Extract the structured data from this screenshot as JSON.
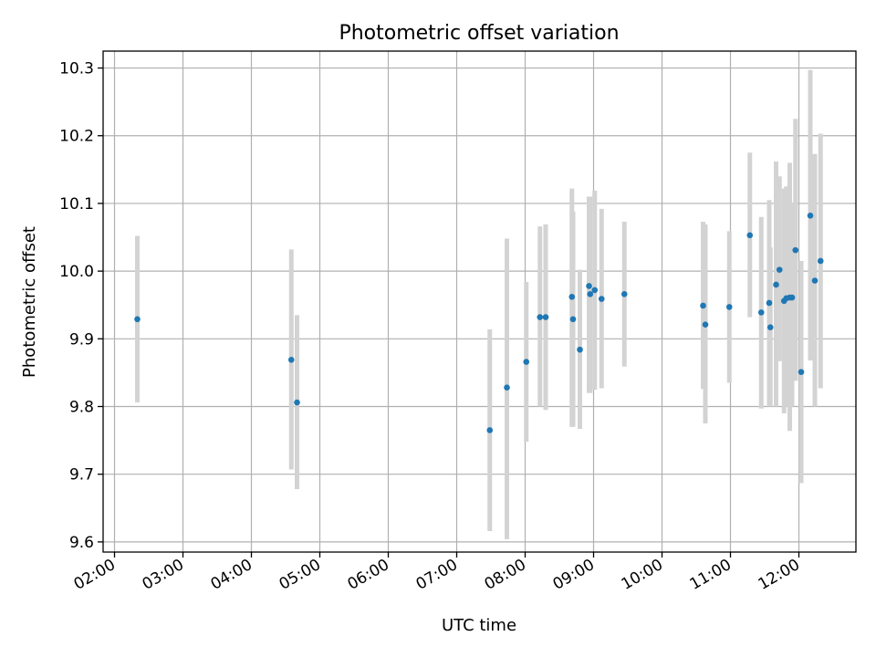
{
  "chart_data": {
    "type": "scatter",
    "title": "Photometric offset variation",
    "xlabel": "UTC time",
    "ylabel": "Photometric offset",
    "x_unit": "hours (UTC)",
    "xlim": [
      "01:50",
      "12:50"
    ],
    "ylim": [
      9.585,
      10.325
    ],
    "grid": true,
    "x_ticks": [
      {
        "t": 2,
        "label": "02:00"
      },
      {
        "t": 3,
        "label": "03:00"
      },
      {
        "t": 4,
        "label": "04:00"
      },
      {
        "t": 5,
        "label": "05:00"
      },
      {
        "t": 6,
        "label": "06:00"
      },
      {
        "t": 7,
        "label": "07:00"
      },
      {
        "t": 8,
        "label": "08:00"
      },
      {
        "t": 9,
        "label": "09:00"
      },
      {
        "t": 10,
        "label": "10:00"
      },
      {
        "t": 11,
        "label": "11:00"
      },
      {
        "t": 12,
        "label": "12:00"
      }
    ],
    "y_ticks": [
      {
        "v": 9.6,
        "label": "9.6"
      },
      {
        "v": 9.7,
        "label": "9.7"
      },
      {
        "v": 9.8,
        "label": "9.8"
      },
      {
        "v": 9.9,
        "label": "9.9"
      },
      {
        "v": 10.0,
        "label": "10.0"
      },
      {
        "v": 10.1,
        "label": "10.1"
      },
      {
        "v": 10.2,
        "label": "10.2"
      },
      {
        "v": 10.3,
        "label": "10.3"
      }
    ],
    "colors": {
      "points": "#1f77b4",
      "errorbars": "#d3d3d3",
      "grid": "#b0b0b0"
    },
    "points": [
      {
        "time": "02:20",
        "y": 9.929,
        "lo": 9.806,
        "hi": 10.052
      },
      {
        "time": "04:35",
        "y": 9.869,
        "lo": 9.707,
        "hi": 10.032
      },
      {
        "time": "04:40",
        "y": 9.806,
        "lo": 9.678,
        "hi": 9.935
      },
      {
        "time": "07:29",
        "y": 9.765,
        "lo": 9.616,
        "hi": 9.914
      },
      {
        "time": "07:44",
        "y": 9.828,
        "lo": 9.604,
        "hi": 10.048
      },
      {
        "time": "08:01",
        "y": 9.866,
        "lo": 9.748,
        "hi": 9.984
      },
      {
        "time": "08:13",
        "y": 9.932,
        "lo": 9.8,
        "hi": 10.066
      },
      {
        "time": "08:18",
        "y": 9.932,
        "lo": 9.795,
        "hi": 10.069
      },
      {
        "time": "08:41",
        "y": 9.962,
        "lo": 9.77,
        "hi": 10.122
      },
      {
        "time": "08:42",
        "y": 9.929,
        "lo": 9.77,
        "hi": 10.088
      },
      {
        "time": "08:48",
        "y": 9.884,
        "lo": 9.767,
        "hi": 10.002
      },
      {
        "time": "08:56",
        "y": 9.978,
        "lo": 9.82,
        "hi": 10.11
      },
      {
        "time": "08:57",
        "y": 9.966,
        "lo": 9.82,
        "hi": 10.11
      },
      {
        "time": "09:01",
        "y": 9.972,
        "lo": 9.825,
        "hi": 10.119
      },
      {
        "time": "09:07",
        "y": 9.959,
        "lo": 9.827,
        "hi": 10.092
      },
      {
        "time": "09:27",
        "y": 9.966,
        "lo": 9.859,
        "hi": 10.073
      },
      {
        "time": "10:36",
        "y": 9.949,
        "lo": 9.826,
        "hi": 10.073
      },
      {
        "time": "10:38",
        "y": 9.921,
        "lo": 9.775,
        "hi": 10.069
      },
      {
        "time": "10:59",
        "y": 9.947,
        "lo": 9.835,
        "hi": 10.059
      },
      {
        "time": "11:17",
        "y": 10.053,
        "lo": 9.932,
        "hi": 10.175
      },
      {
        "time": "11:27",
        "y": 9.939,
        "lo": 9.797,
        "hi": 10.08
      },
      {
        "time": "11:34",
        "y": 9.953,
        "lo": 9.8,
        "hi": 10.105
      },
      {
        "time": "11:35",
        "y": 9.917,
        "lo": 9.8,
        "hi": 10.035
      },
      {
        "time": "11:40",
        "y": 9.98,
        "lo": 9.8,
        "hi": 10.162
      },
      {
        "time": "11:43",
        "y": 10.002,
        "lo": 9.867,
        "hi": 10.14
      },
      {
        "time": "11:47",
        "y": 9.956,
        "lo": 9.79,
        "hi": 10.122
      },
      {
        "time": "11:49",
        "y": 9.96,
        "lo": 9.8,
        "hi": 10.125
      },
      {
        "time": "11:52",
        "y": 9.961,
        "lo": 9.764,
        "hi": 10.16
      },
      {
        "time": "11:54",
        "y": 9.961,
        "lo": 9.8,
        "hi": 10.1
      },
      {
        "time": "11:57",
        "y": 10.031,
        "lo": 9.838,
        "hi": 10.225
      },
      {
        "time": "12:02",
        "y": 9.851,
        "lo": 9.687,
        "hi": 10.015
      },
      {
        "time": "12:10",
        "y": 10.082,
        "lo": 9.868,
        "hi": 10.297
      },
      {
        "time": "12:14",
        "y": 9.986,
        "lo": 9.8,
        "hi": 10.173
      },
      {
        "time": "12:19",
        "y": 10.015,
        "lo": 9.827,
        "hi": 10.203
      }
    ]
  }
}
